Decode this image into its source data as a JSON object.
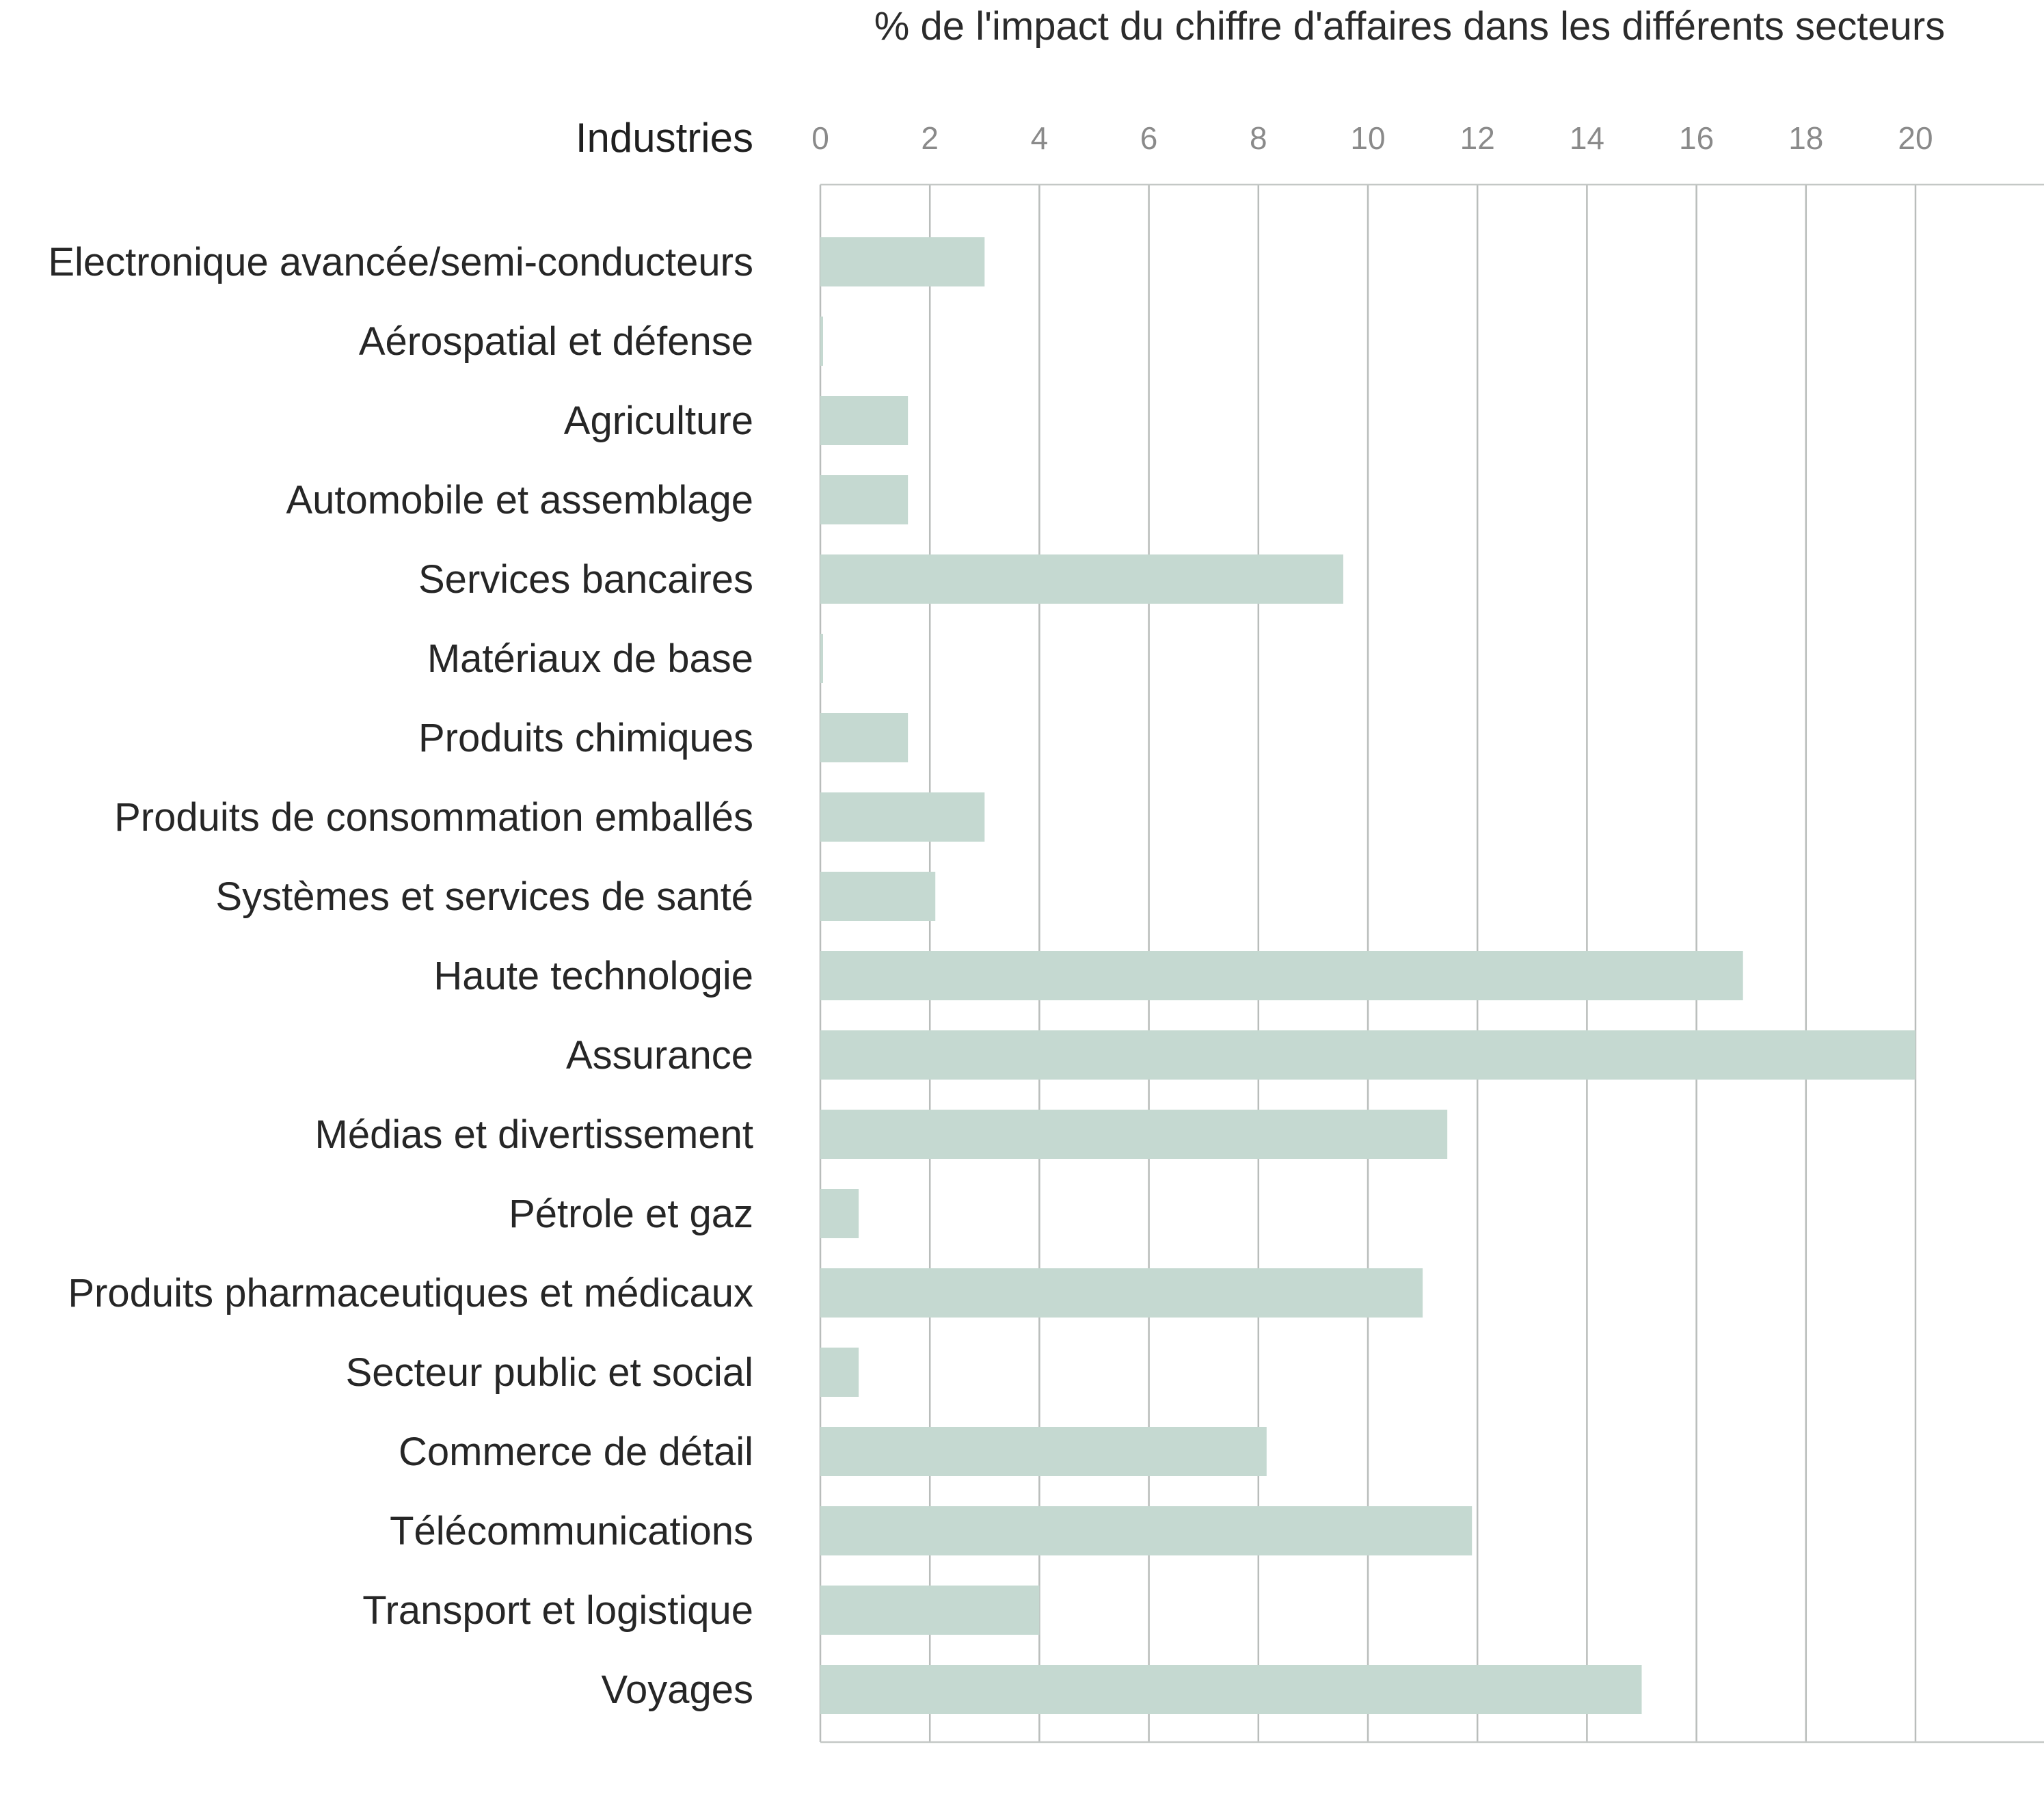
{
  "chart_data": {
    "type": "bar",
    "orientation": "horizontal",
    "title": "% de l'impact du chiffre d'affaires dans les différents secteurs",
    "category_header": "Industries",
    "categories": [
      "Electronique avancée/semi-conducteurs",
      "Aérospatial et défense",
      "Agriculture",
      "Automobile et assemblage",
      "Services bancaires",
      "Matériaux de base",
      "Produits chimiques",
      "Produits de consommation emballés",
      "Systèmes et services de santé",
      "Haute technologie",
      "Assurance",
      "Médias et divertissement",
      "Pétrole et gaz",
      "Produits pharmaceutiques et médicaux",
      "Secteur public et social",
      "Commerce de détail",
      "Télécommunications",
      "Transport et logistique",
      "Voyages"
    ],
    "values": [
      3.0,
      0.05,
      1.6,
      1.6,
      9.55,
      0.05,
      1.6,
      3.0,
      2.1,
      16.85,
      20.0,
      11.45,
      0.7,
      11.0,
      0.7,
      8.15,
      11.9,
      4.0,
      15.0
    ],
    "xticks": [
      0,
      2,
      4,
      6,
      8,
      10,
      12,
      14,
      16,
      18,
      20
    ],
    "xlim": [
      0,
      22.4
    ],
    "grid": true,
    "xaxis_position": "top",
    "bar_color": "#c5d9d1",
    "grid_color": "#b9bdbb"
  }
}
